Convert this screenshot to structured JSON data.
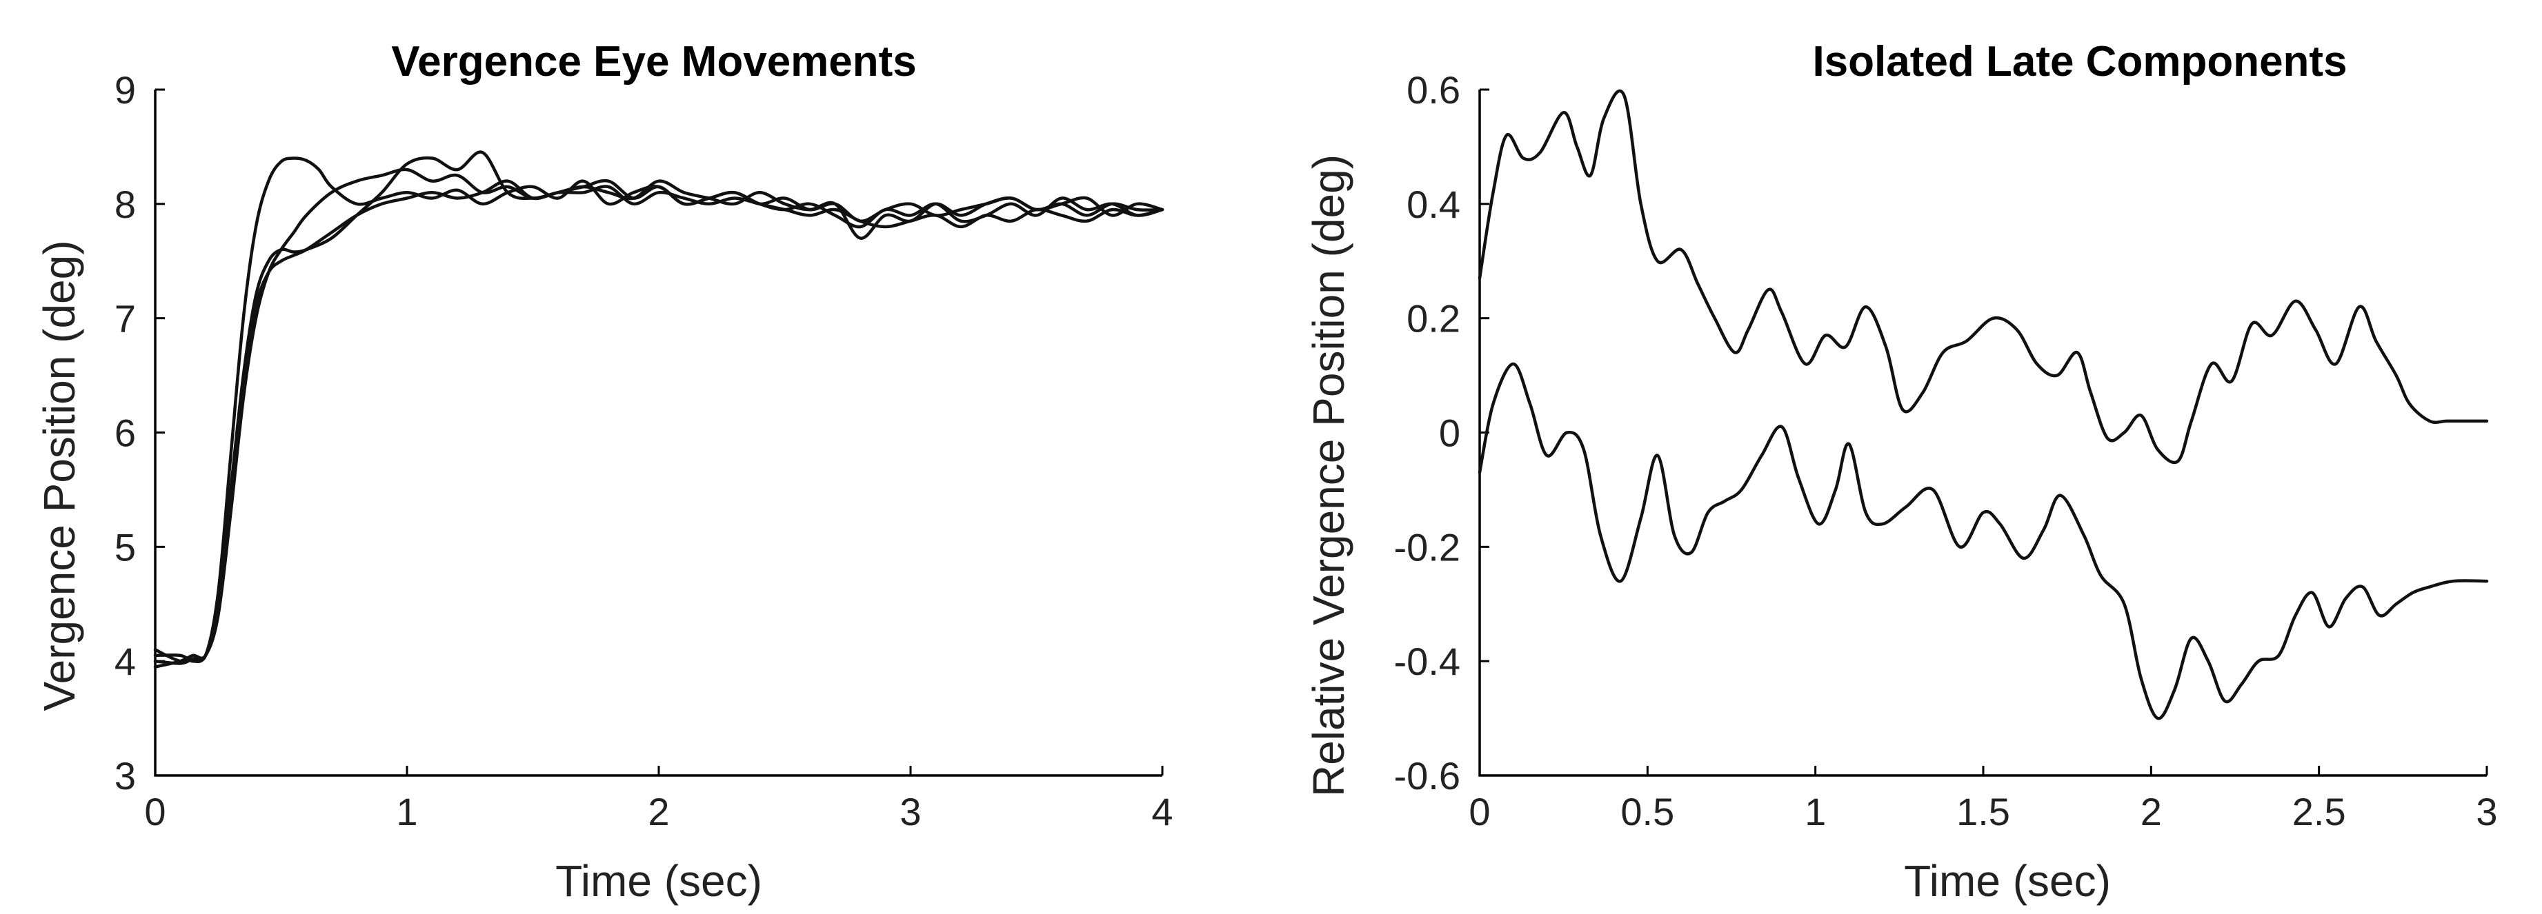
{
  "chart_data": [
    {
      "type": "line",
      "title": "Vergence Eye Movements",
      "xlabel": "Time (sec)",
      "ylabel": "Vergence Position (deg)",
      "xlim": [
        0,
        4
      ],
      "ylim": [
        3,
        9
      ],
      "xticks": [
        0,
        1,
        2,
        3,
        4
      ],
      "yticks": [
        3,
        4,
        5,
        6,
        7,
        8,
        9
      ],
      "grid": false,
      "series": [
        {
          "x": [
            0,
            0.1,
            0.15,
            0.2,
            0.25,
            0.3,
            0.35,
            0.4,
            0.45,
            0.5,
            0.55,
            0.6,
            0.65,
            0.7,
            0.8,
            0.9,
            1.0,
            1.1,
            1.2,
            1.3,
            1.4,
            1.5,
            1.6,
            1.7,
            1.8,
            1.9,
            2.0,
            2.1,
            2.2,
            2.3,
            2.4,
            2.5,
            2.6,
            2.7,
            2.8,
            2.9,
            3.0,
            3.1,
            3.2,
            3.3,
            3.4,
            3.5,
            3.6,
            3.7,
            3.8,
            3.9,
            4.0
          ],
          "y": [
            4.1,
            4.0,
            4.05,
            4.05,
            4.6,
            5.8,
            7.0,
            7.8,
            8.2,
            8.37,
            8.4,
            8.38,
            8.3,
            8.15,
            8.0,
            8.05,
            8.1,
            8.05,
            8.12,
            8.0,
            8.1,
            8.15,
            8.05,
            8.2,
            8.0,
            8.1,
            8.15,
            8.0,
            8.05,
            8.1,
            8.0,
            8.05,
            7.95,
            8.0,
            7.85,
            7.95,
            8.0,
            7.9,
            7.95,
            8.0,
            8.05,
            7.95,
            8.0,
            7.9,
            8.0,
            7.95,
            7.95
          ]
        },
        {
          "x": [
            0,
            0.1,
            0.15,
            0.2,
            0.25,
            0.3,
            0.35,
            0.4,
            0.45,
            0.5,
            0.55,
            0.6,
            0.7,
            0.8,
            0.9,
            1.0,
            1.1,
            1.2,
            1.3,
            1.4,
            1.5,
            1.6,
            1.7,
            1.8,
            1.9,
            2.0,
            2.1,
            2.2,
            2.3,
            2.4,
            2.5,
            2.6,
            2.7,
            2.8,
            2.9,
            3.0,
            3.1,
            3.2,
            3.3,
            3.4,
            3.5,
            3.6,
            3.7,
            3.8,
            3.9,
            4.0
          ],
          "y": [
            3.95,
            4.0,
            4.05,
            4.05,
            4.4,
            5.3,
            6.3,
            7.0,
            7.4,
            7.6,
            7.75,
            7.9,
            8.1,
            8.2,
            8.25,
            8.3,
            8.2,
            8.25,
            8.1,
            8.15,
            8.05,
            8.1,
            8.15,
            8.1,
            8.05,
            8.2,
            8.1,
            8.05,
            8.0,
            8.1,
            8.0,
            7.95,
            8.0,
            7.7,
            7.9,
            7.85,
            8.0,
            7.9,
            8.0,
            8.05,
            7.95,
            8.0,
            8.05,
            7.9,
            8.0,
            7.95
          ]
        },
        {
          "x": [
            0,
            0.1,
            0.15,
            0.2,
            0.25,
            0.3,
            0.35,
            0.4,
            0.45,
            0.5,
            0.55,
            0.6,
            0.7,
            0.8,
            0.9,
            1.0,
            1.1,
            1.2,
            1.3,
            1.4,
            1.5,
            1.6,
            1.7,
            1.8,
            1.9,
            2.0,
            2.1,
            2.2,
            2.3,
            2.4,
            2.5,
            2.6,
            2.7,
            2.8,
            2.9,
            3.0,
            3.1,
            3.2,
            3.3,
            3.4,
            3.5,
            3.6,
            3.7,
            3.8,
            3.9,
            4.0
          ],
          "y": [
            4.0,
            3.98,
            4.02,
            4.05,
            4.5,
            5.5,
            6.5,
            7.2,
            7.5,
            7.6,
            7.58,
            7.6,
            7.7,
            7.9,
            8.1,
            8.35,
            8.4,
            8.3,
            8.45,
            8.1,
            8.05,
            8.1,
            8.15,
            8.2,
            8.05,
            8.15,
            8.0,
            8.05,
            8.1,
            8.0,
            7.95,
            8.0,
            7.9,
            7.8,
            7.95,
            7.9,
            8.0,
            7.85,
            7.9,
            8.0,
            7.9,
            8.05,
            7.95,
            8.0,
            7.9,
            7.95
          ]
        },
        {
          "x": [
            0,
            0.1,
            0.15,
            0.2,
            0.25,
            0.3,
            0.35,
            0.4,
            0.45,
            0.5,
            0.55,
            0.6,
            0.7,
            0.8,
            0.9,
            1.0,
            1.1,
            1.2,
            1.3,
            1.4,
            1.5,
            1.6,
            1.7,
            1.8,
            1.9,
            2.0,
            2.1,
            2.2,
            2.3,
            2.4,
            2.5,
            2.6,
            2.7,
            2.8,
            2.9,
            3.0,
            3.1,
            3.2,
            3.3,
            3.4,
            3.5,
            3.6,
            3.7,
            3.8,
            3.9,
            4.0
          ],
          "y": [
            4.05,
            4.05,
            4.0,
            4.05,
            4.45,
            5.4,
            6.4,
            7.1,
            7.4,
            7.5,
            7.55,
            7.6,
            7.75,
            7.9,
            8.0,
            8.05,
            8.1,
            8.05,
            8.1,
            8.2,
            8.05,
            8.1,
            8.1,
            8.15,
            8.0,
            8.1,
            8.05,
            8.0,
            8.05,
            8.0,
            7.95,
            7.9,
            7.95,
            7.85,
            7.8,
            7.85,
            7.9,
            7.8,
            7.9,
            7.85,
            7.95,
            7.9,
            7.85,
            7.95,
            7.9,
            7.95
          ]
        }
      ]
    },
    {
      "type": "line",
      "title": "Isolated Late Components",
      "xlabel": "Time (sec)",
      "ylabel": "Relative Vergence Position (deg)",
      "xlim": [
        0,
        3
      ],
      "ylim": [
        -0.6,
        0.6
      ],
      "xticks": [
        0,
        0.5,
        1,
        1.5,
        2,
        2.5,
        3
      ],
      "yticks": [
        -0.6,
        -0.4,
        -0.2,
        0,
        0.2,
        0.4,
        0.6
      ],
      "grid": false,
      "series": [
        {
          "x": [
            0,
            0.04,
            0.08,
            0.13,
            0.18,
            0.25,
            0.29,
            0.33,
            0.37,
            0.43,
            0.48,
            0.53,
            0.6,
            0.65,
            0.7,
            0.76,
            0.8,
            0.86,
            0.9,
            0.97,
            1.03,
            1.09,
            1.15,
            1.21,
            1.26,
            1.32,
            1.38,
            1.45,
            1.53,
            1.6,
            1.66,
            1.72,
            1.78,
            1.82,
            1.87,
            1.92,
            1.97,
            2.02,
            2.08,
            2.12,
            2.18,
            2.24,
            2.3,
            2.36,
            2.43,
            2.49,
            2.55,
            2.62,
            2.67,
            2.73,
            2.77,
            2.83,
            2.88,
            2.93,
            3.0
          ],
          "y": [
            0.27,
            0.42,
            0.52,
            0.48,
            0.49,
            0.56,
            0.5,
            0.45,
            0.55,
            0.59,
            0.4,
            0.3,
            0.32,
            0.26,
            0.2,
            0.14,
            0.18,
            0.25,
            0.21,
            0.12,
            0.17,
            0.15,
            0.22,
            0.15,
            0.04,
            0.07,
            0.14,
            0.16,
            0.2,
            0.18,
            0.12,
            0.1,
            0.14,
            0.07,
            -0.01,
            0.0,
            0.03,
            -0.03,
            -0.05,
            0.02,
            0.12,
            0.09,
            0.19,
            0.17,
            0.23,
            0.18,
            0.12,
            0.22,
            0.16,
            0.1,
            0.05,
            0.02,
            0.02,
            0.02,
            0.02
          ]
        },
        {
          "x": [
            0,
            0.04,
            0.1,
            0.15,
            0.2,
            0.26,
            0.31,
            0.36,
            0.42,
            0.48,
            0.53,
            0.58,
            0.63,
            0.68,
            0.73,
            0.78,
            0.84,
            0.9,
            0.95,
            1.01,
            1.06,
            1.1,
            1.15,
            1.2,
            1.27,
            1.35,
            1.43,
            1.5,
            1.55,
            1.62,
            1.68,
            1.73,
            1.8,
            1.85,
            1.92,
            1.97,
            2.02,
            2.07,
            2.12,
            2.17,
            2.22,
            2.27,
            2.32,
            2.38,
            2.43,
            2.48,
            2.53,
            2.58,
            2.63,
            2.68,
            2.73,
            2.78,
            2.83,
            2.9,
            3.0
          ],
          "y": [
            -0.07,
            0.05,
            0.12,
            0.05,
            -0.04,
            0.0,
            -0.03,
            -0.18,
            -0.26,
            -0.15,
            -0.04,
            -0.18,
            -0.21,
            -0.14,
            -0.12,
            -0.1,
            -0.04,
            0.01,
            -0.08,
            -0.16,
            -0.1,
            -0.02,
            -0.14,
            -0.16,
            -0.13,
            -0.1,
            -0.2,
            -0.14,
            -0.16,
            -0.22,
            -0.17,
            -0.11,
            -0.18,
            -0.25,
            -0.3,
            -0.43,
            -0.5,
            -0.45,
            -0.36,
            -0.4,
            -0.47,
            -0.44,
            -0.4,
            -0.39,
            -0.32,
            -0.28,
            -0.34,
            -0.29,
            -0.27,
            -0.32,
            -0.3,
            -0.28,
            -0.27,
            -0.26,
            -0.26
          ]
        }
      ]
    }
  ]
}
